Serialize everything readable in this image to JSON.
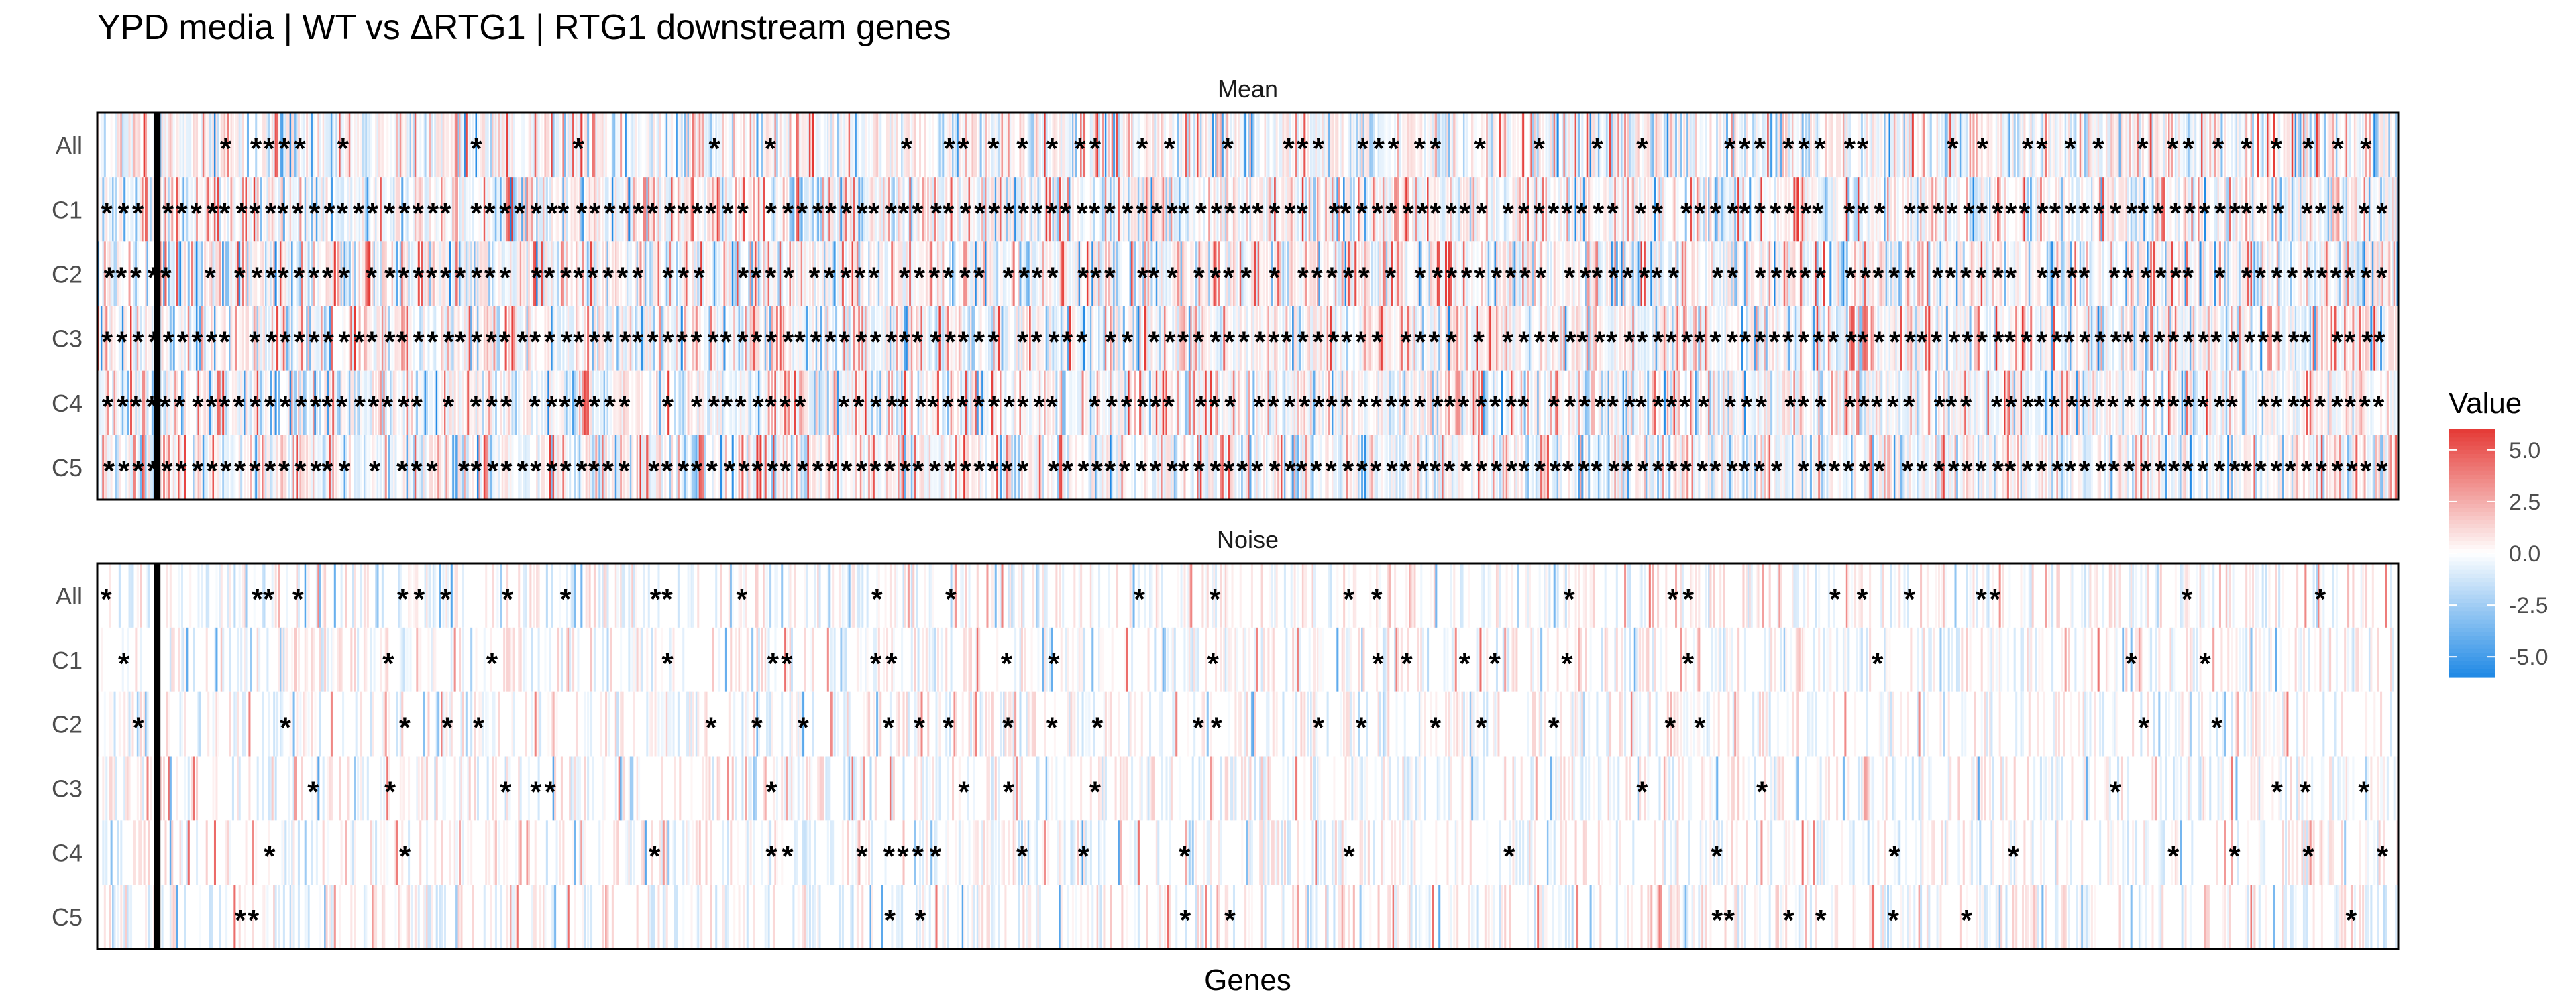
{
  "chart_data": {
    "type": "heatmap",
    "title": "YPD media | WT vs ΔRTG1 | RTG1 downstream genes",
    "xlabel": "Genes",
    "ylabel": "",
    "panels": [
      {
        "name": "Mean",
        "rows": [
          "All",
          "C1",
          "C2",
          "C3",
          "C4",
          "C5"
        ]
      },
      {
        "name": "Noise",
        "rows": [
          "All",
          "C1",
          "C2",
          "C3",
          "C4",
          "C5"
        ]
      }
    ],
    "significance_marker": "*",
    "n_genes_approx": 1400,
    "highlight_gene_fraction": 0.026,
    "color_scale": {
      "name": "Value",
      "limits": [
        -6,
        6
      ],
      "breaks": [
        5.0,
        2.5,
        0.0,
        -2.5,
        -5.0
      ],
      "break_labels": [
        "5.0",
        "2.5",
        "0.0",
        "-2.5",
        "-5.0"
      ],
      "low": "#1e88e5",
      "mid": "#ffffff",
      "high": "#e53935"
    },
    "row_significance_density": {
      "Mean": [
        0.3,
        0.92,
        0.8,
        0.95,
        0.82,
        0.93
      ],
      "Noise": [
        0.2,
        0.1,
        0.16,
        0.08,
        0.12,
        0.08
      ]
    },
    "grid": false,
    "legend_position": "right"
  }
}
